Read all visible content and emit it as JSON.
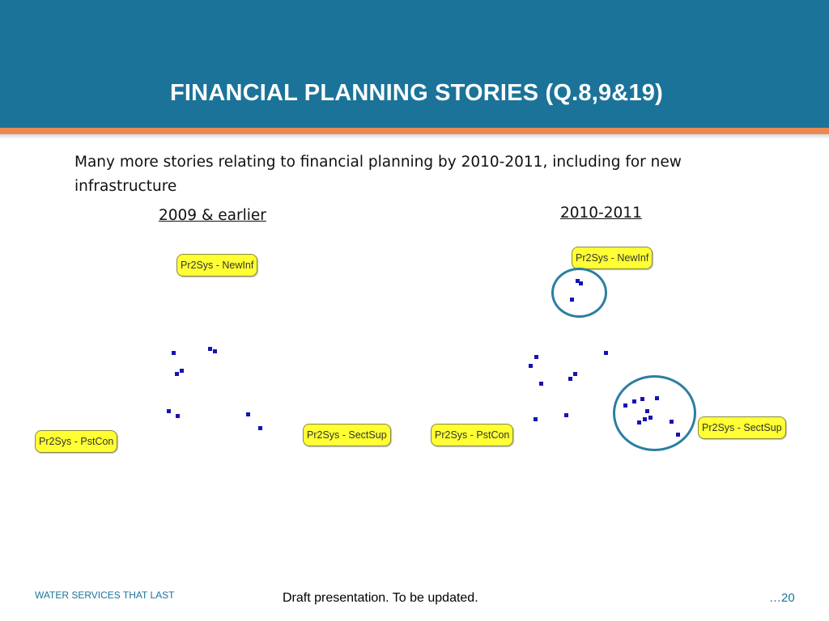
{
  "title": "FINANCIAL PLANNING STORIES (Q.8,9&19)",
  "intro": "Many more stories relating to financial planning by 2010-2011, including for new infrastructure",
  "panels": [
    {
      "period": "2009 & earlier",
      "nodes": [
        "Pr2Sys - NewInf",
        "Pr2Sys - PstCon",
        "Pr2Sys - SectSup"
      ]
    },
    {
      "period": "2010-2011",
      "nodes": [
        "Pr2Sys - NewInf",
        "Pr2Sys - PstCon",
        "Pr2Sys - SectSup"
      ]
    }
  ],
  "footer": {
    "left": "WATER SERVICES THAT LAST",
    "center": "Draft presentation. To be updated.",
    "page": "…20"
  },
  "colors": {
    "header": "#1b7399",
    "accent_stripe": "#e88a52",
    "node_fill": "#ffff33",
    "dot": "#1515b0",
    "circle": "#2a7fa0"
  }
}
